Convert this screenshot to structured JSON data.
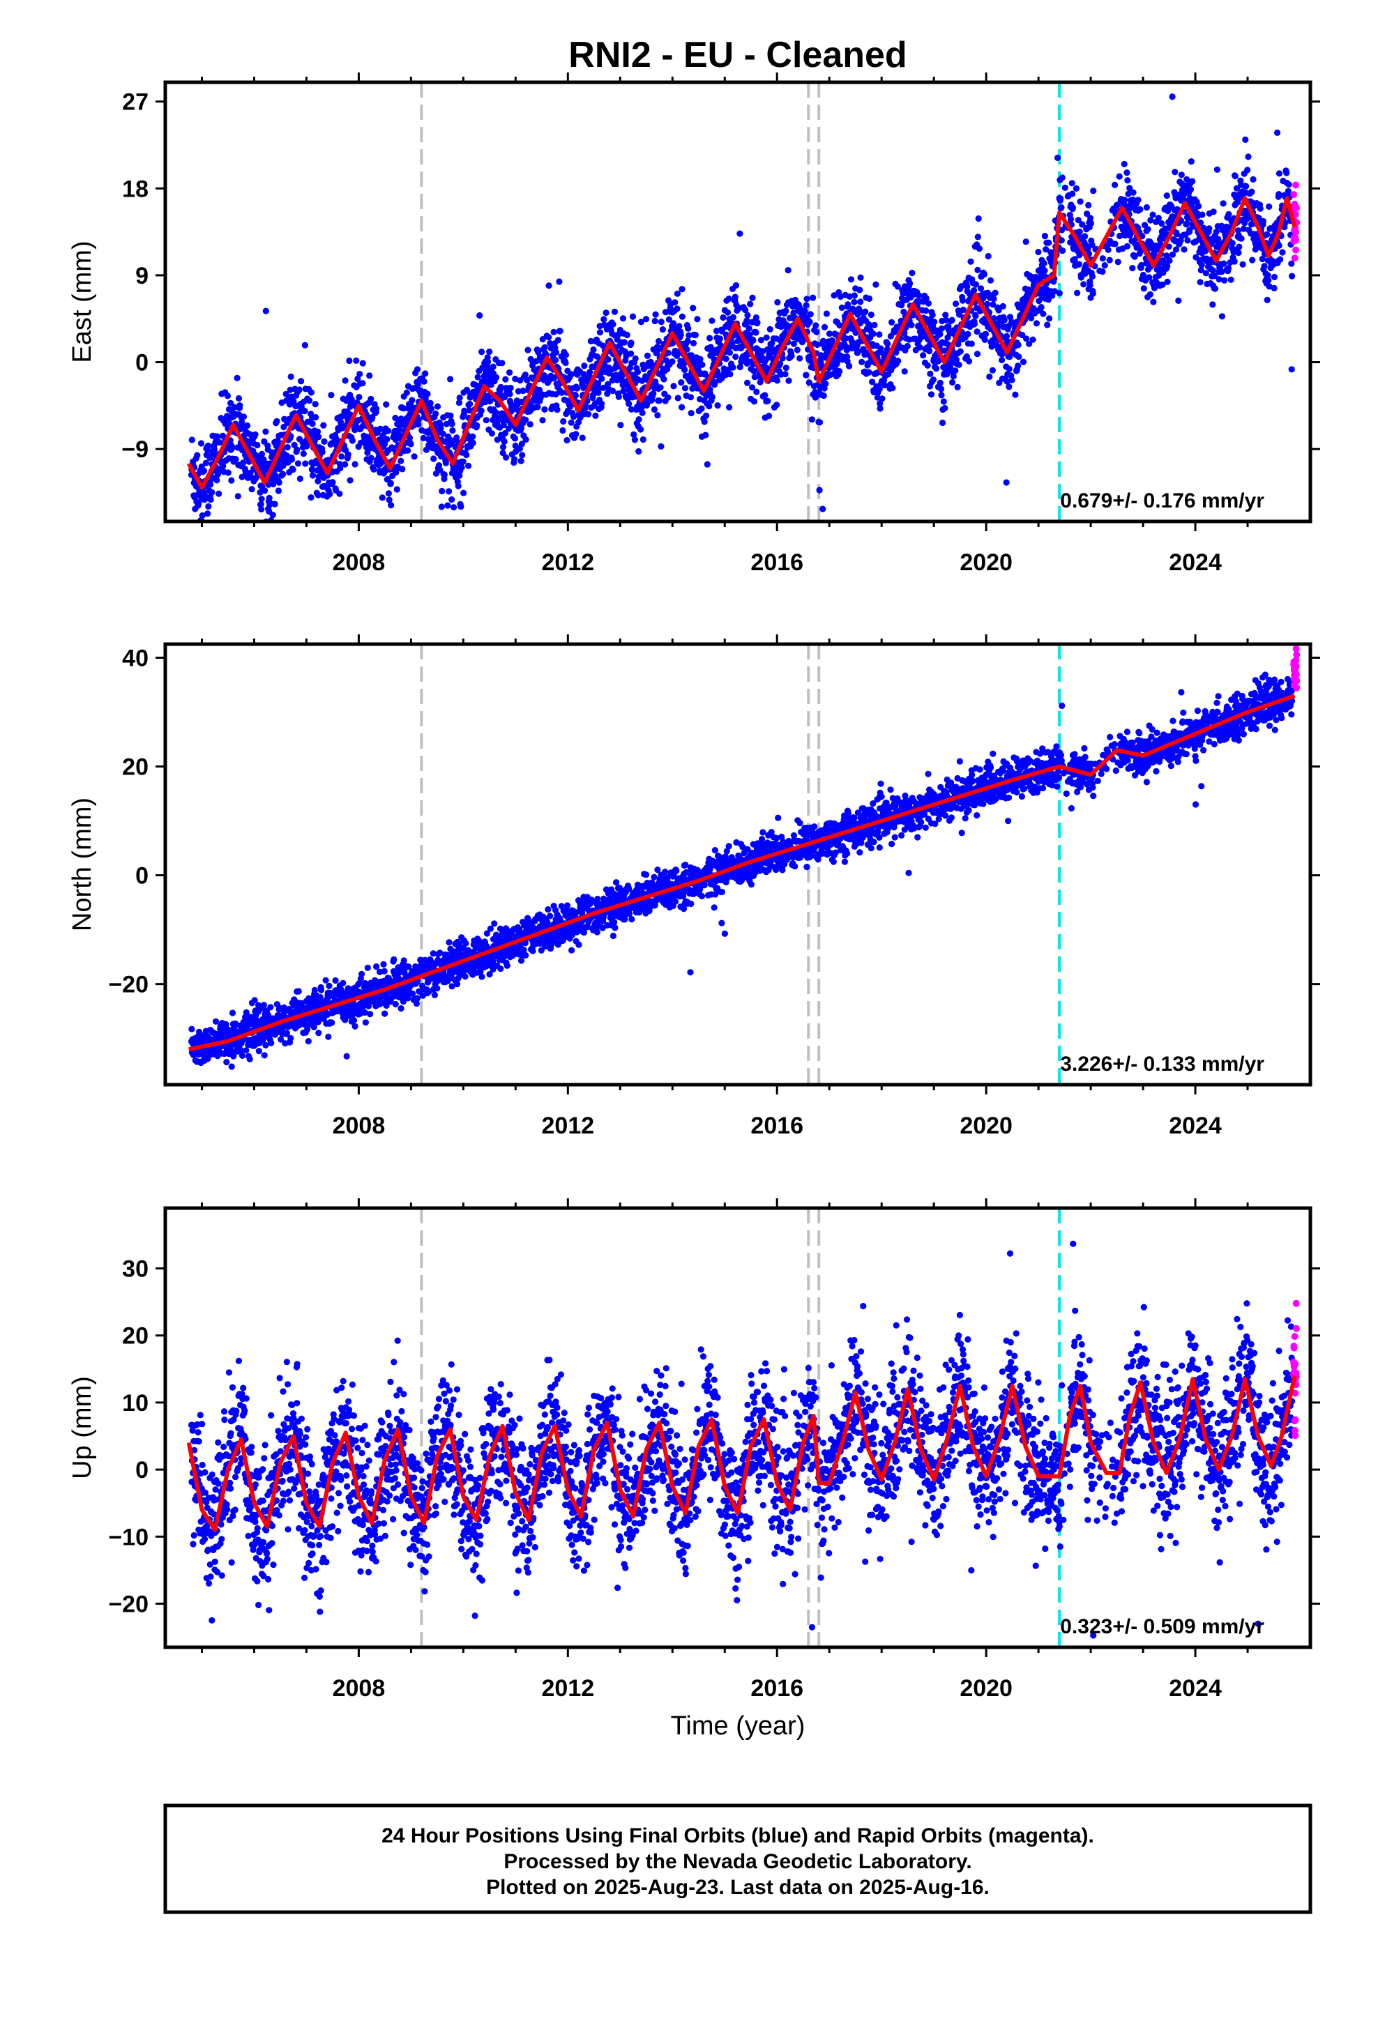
{
  "title": "RNI2  - EU - Cleaned",
  "chart_data": {
    "type": "scatter",
    "x_ticks": [
      "2008",
      "2012",
      "2016",
      "2020",
      "2024"
    ],
    "x_tick_values": [
      2008,
      2012,
      2016,
      2020,
      2024
    ],
    "xlim": [
      2004.3,
      2026.2
    ],
    "xlabel": "Time (year)",
    "marker_colors": {
      "final": "#0000ff",
      "rapid": "#ff00ff",
      "model": "#ff0000"
    },
    "vlines": [
      {
        "x": 2009.2,
        "color": "#bfbfbf"
      },
      {
        "x": 2016.6,
        "color": "#bfbfbf"
      },
      {
        "x": 2016.8,
        "color": "#bfbfbf"
      },
      {
        "x": 2021.4,
        "color": "#00e5ee"
      }
    ],
    "panels": [
      {
        "name": "east",
        "ylabel": "East (mm)",
        "ylim": [
          -16.5,
          29
        ],
        "y_ticks": [
          "27",
          "18",
          "9",
          "0",
          "-9"
        ],
        "y_tick_values": [
          27,
          18,
          9,
          0,
          -9
        ],
        "rate_label": "0.679+/- 0.176 mm/yr",
        "model_points": [
          [
            2004.75,
            -10.5
          ],
          [
            2005.0,
            -13
          ],
          [
            2005.3,
            -10
          ],
          [
            2005.6,
            -6.5
          ],
          [
            2005.9,
            -9.5
          ],
          [
            2006.2,
            -12.5
          ],
          [
            2006.5,
            -9
          ],
          [
            2006.8,
            -5.5
          ],
          [
            2007.1,
            -8.5
          ],
          [
            2007.4,
            -11.5
          ],
          [
            2007.7,
            -8
          ],
          [
            2008.0,
            -4.5
          ],
          [
            2008.3,
            -8
          ],
          [
            2008.6,
            -11
          ],
          [
            2008.9,
            -7.5
          ],
          [
            2009.2,
            -4
          ],
          [
            2009.5,
            -8
          ],
          [
            2009.8,
            -10.5
          ],
          [
            2010.1,
            -6.5
          ],
          [
            2010.4,
            -2.5
          ],
          [
            2010.7,
            -4
          ],
          [
            2011.0,
            -6.5
          ],
          [
            2011.3,
            -3
          ],
          [
            2011.6,
            0.5
          ],
          [
            2011.9,
            -2
          ],
          [
            2012.2,
            -5
          ],
          [
            2012.5,
            -1.5
          ],
          [
            2012.8,
            2
          ],
          [
            2013.1,
            -1
          ],
          [
            2013.4,
            -4
          ],
          [
            2013.7,
            -0.5
          ],
          [
            2014.0,
            3
          ],
          [
            2014.3,
            0
          ],
          [
            2014.6,
            -3
          ],
          [
            2014.9,
            0.5
          ],
          [
            2015.2,
            4
          ],
          [
            2015.5,
            1
          ],
          [
            2015.8,
            -2
          ],
          [
            2016.1,
            1.5
          ],
          [
            2016.4,
            4.5
          ],
          [
            2016.7,
            1
          ],
          [
            2016.8,
            -2
          ],
          [
            2017.1,
            1.5
          ],
          [
            2017.4,
            5
          ],
          [
            2017.7,
            2
          ],
          [
            2018.0,
            -1
          ],
          [
            2018.3,
            2.5
          ],
          [
            2018.6,
            6
          ],
          [
            2018.9,
            3
          ],
          [
            2019.2,
            0
          ],
          [
            2019.5,
            3.5
          ],
          [
            2019.8,
            7
          ],
          [
            2020.1,
            4
          ],
          [
            2020.4,
            1
          ],
          [
            2020.7,
            4.5
          ],
          [
            2021.0,
            8
          ],
          [
            2021.3,
            9
          ],
          [
            2021.4,
            15.5
          ],
          [
            2021.7,
            13
          ],
          [
            2022.0,
            10
          ],
          [
            2022.3,
            13
          ],
          [
            2022.6,
            16
          ],
          [
            2022.9,
            13
          ],
          [
            2023.2,
            10
          ],
          [
            2023.5,
            13
          ],
          [
            2023.8,
            16.5
          ],
          [
            2024.1,
            13.5
          ],
          [
            2024.4,
            10.5
          ],
          [
            2024.7,
            13.5
          ],
          [
            2024.95,
            17
          ],
          [
            2025.2,
            14
          ],
          [
            2025.4,
            11
          ],
          [
            2025.6,
            13.5
          ],
          [
            2025.75,
            17
          ],
          [
            2025.9,
            14
          ]
        ]
      },
      {
        "name": "north",
        "ylabel": "North (mm)",
        "ylim": [
          -38.5,
          42.5
        ],
        "y_ticks": [
          "40",
          "20",
          "0",
          "-20"
        ],
        "y_tick_values": [
          40,
          20,
          0,
          -20
        ],
        "rate_label": "3.226+/- 0.133 mm/yr",
        "model_points": [
          [
            2004.75,
            -32
          ],
          [
            2005.5,
            -30.5
          ],
          [
            2006.5,
            -27
          ],
          [
            2007.5,
            -24
          ],
          [
            2008.5,
            -21
          ],
          [
            2009.5,
            -17.5
          ],
          [
            2010.5,
            -14
          ],
          [
            2011.5,
            -10.5
          ],
          [
            2012.5,
            -7
          ],
          [
            2013.5,
            -4
          ],
          [
            2014.5,
            -1
          ],
          [
            2015.5,
            2.5
          ],
          [
            2016.5,
            5.5
          ],
          [
            2017.5,
            8.5
          ],
          [
            2018.5,
            11.5
          ],
          [
            2019.5,
            14.5
          ],
          [
            2020.5,
            17.5
          ],
          [
            2021.4,
            20
          ],
          [
            2022.0,
            18.5
          ],
          [
            2022.5,
            23
          ],
          [
            2023.0,
            22
          ],
          [
            2024.0,
            26
          ],
          [
            2025.0,
            30
          ],
          [
            2025.9,
            33
          ]
        ]
      },
      {
        "name": "up",
        "ylabel": "Up (mm)",
        "ylim": [
          -26.5,
          39
        ],
        "y_ticks": [
          "30",
          "20",
          "10",
          "0",
          "-10",
          "-20"
        ],
        "y_tick_values": [
          30,
          20,
          10,
          0,
          -10,
          -20
        ],
        "rate_label": "0.323+/- 0.509 mm/yr",
        "model_points": [
          [
            2004.75,
            4
          ],
          [
            2005.0,
            -6
          ],
          [
            2005.25,
            -9
          ],
          [
            2005.5,
            0
          ],
          [
            2005.75,
            4.5
          ],
          [
            2006.0,
            -5
          ],
          [
            2006.25,
            -8.5
          ],
          [
            2006.5,
            1
          ],
          [
            2006.75,
            5
          ],
          [
            2007.0,
            -5
          ],
          [
            2007.25,
            -8.5
          ],
          [
            2007.5,
            1
          ],
          [
            2007.75,
            5.5
          ],
          [
            2008.0,
            -4
          ],
          [
            2008.25,
            -8
          ],
          [
            2008.5,
            1.5
          ],
          [
            2008.75,
            6
          ],
          [
            2009.0,
            -4
          ],
          [
            2009.25,
            -8
          ],
          [
            2009.5,
            2
          ],
          [
            2009.75,
            6
          ],
          [
            2010.0,
            -4
          ],
          [
            2010.25,
            -7.5
          ],
          [
            2010.5,
            2
          ],
          [
            2010.75,
            6.5
          ],
          [
            2011.0,
            -3.5
          ],
          [
            2011.25,
            -7.5
          ],
          [
            2011.5,
            2.5
          ],
          [
            2011.75,
            6.5
          ],
          [
            2012.0,
            -3
          ],
          [
            2012.25,
            -7
          ],
          [
            2012.5,
            3
          ],
          [
            2012.75,
            7
          ],
          [
            2013.0,
            -3
          ],
          [
            2013.25,
            -7
          ],
          [
            2013.5,
            3
          ],
          [
            2013.75,
            7
          ],
          [
            2014.0,
            -2.5
          ],
          [
            2014.25,
            -6.5
          ],
          [
            2014.5,
            3.5
          ],
          [
            2014.75,
            7.5
          ],
          [
            2015.0,
            -2.5
          ],
          [
            2015.25,
            -6.5
          ],
          [
            2015.5,
            3.5
          ],
          [
            2015.75,
            7.5
          ],
          [
            2016.0,
            -2
          ],
          [
            2016.25,
            -6
          ],
          [
            2016.5,
            4
          ],
          [
            2016.7,
            8
          ],
          [
            2016.8,
            -2
          ],
          [
            2017.0,
            -2
          ],
          [
            2017.25,
            4
          ],
          [
            2017.5,
            11.5
          ],
          [
            2017.75,
            3
          ],
          [
            2018.0,
            -1.5
          ],
          [
            2018.25,
            4
          ],
          [
            2018.5,
            12
          ],
          [
            2018.75,
            3
          ],
          [
            2019.0,
            -1.5
          ],
          [
            2019.25,
            4.5
          ],
          [
            2019.5,
            12.5
          ],
          [
            2019.75,
            3.5
          ],
          [
            2020.0,
            -1
          ],
          [
            2020.25,
            4.5
          ],
          [
            2020.5,
            12.5
          ],
          [
            2020.75,
            3.5
          ],
          [
            2021.0,
            -1
          ],
          [
            2021.4,
            -1
          ],
          [
            2021.6,
            8
          ],
          [
            2021.8,
            12.5
          ],
          [
            2022.0,
            4
          ],
          [
            2022.3,
            -0.5
          ],
          [
            2022.55,
            -0.5
          ],
          [
            2022.75,
            8
          ],
          [
            2022.95,
            13
          ],
          [
            2023.2,
            4
          ],
          [
            2023.45,
            -0.5
          ],
          [
            2023.7,
            4.5
          ],
          [
            2023.95,
            13.5
          ],
          [
            2024.2,
            4.5
          ],
          [
            2024.45,
            0
          ],
          [
            2024.7,
            5
          ],
          [
            2024.95,
            13.5
          ],
          [
            2025.2,
            5
          ],
          [
            2025.45,
            0.5
          ],
          [
            2025.65,
            5
          ],
          [
            2025.9,
            14
          ]
        ]
      }
    ]
  },
  "footer": {
    "line1": "24 Hour Positions Using Final Orbits (blue) and Rapid Orbits (magenta).",
    "line2": "Processed by the Nevada Geodetic Laboratory.",
    "line3": "Plotted on 2025-Aug-23. Last data on 2025-Aug-16."
  }
}
